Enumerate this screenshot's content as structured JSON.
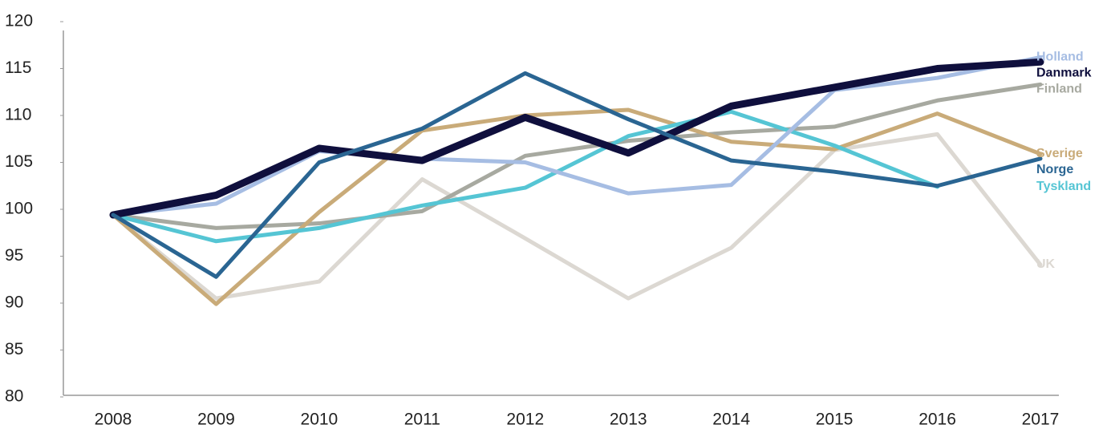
{
  "chart_data": {
    "type": "line",
    "categories": [
      "2008",
      "2009",
      "2010",
      "2011",
      "2012",
      "2013",
      "2014",
      "2015",
      "2016",
      "2017"
    ],
    "series": [
      {
        "name": "UK",
        "color": "#dcd8d2",
        "values": [
          99.4,
          90.5,
          92.3,
          103.2,
          96.9,
          90.5,
          95.9,
          106.3,
          108,
          94.1
        ]
      },
      {
        "name": "Finland",
        "color": "#a7a9a0",
        "values": [
          99.4,
          98,
          98.5,
          99.8,
          105.7,
          107.3,
          108.2,
          108.8,
          111.6,
          113.3
        ]
      },
      {
        "name": "Sverige",
        "color": "#c9ab79",
        "values": [
          99.4,
          89.9,
          99.7,
          108.4,
          110,
          110.6,
          107.2,
          106.4,
          110.2,
          105.9
        ]
      },
      {
        "name": "Tyskland",
        "color": "#55c5d4",
        "values": [
          99.4,
          96.6,
          98,
          100.4,
          102.3,
          107.8,
          110.4,
          106.8,
          102.4,
          null
        ]
      },
      {
        "name": "Holland",
        "color": "#a6bde3",
        "values": [
          99.4,
          100.6,
          106.2,
          105.4,
          105,
          101.7,
          102.6,
          112.7,
          114,
          116.2
        ]
      },
      {
        "name": "Danmark",
        "color": "#0f0f3d",
        "values": [
          99.4,
          101.5,
          106.5,
          105.2,
          109.8,
          106,
          111,
          113,
          115,
          115.7
        ]
      },
      {
        "name": "Norge",
        "color": "#2a6592",
        "values": [
          99.4,
          92.8,
          105,
          108.6,
          114.5,
          109.6,
          105.2,
          104,
          102.5,
          105.4
        ]
      }
    ],
    "ylim": [
      80,
      120
    ],
    "yticks": [
      80,
      85,
      90,
      95,
      100,
      105,
      110,
      115,
      120
    ],
    "grid": false
  }
}
